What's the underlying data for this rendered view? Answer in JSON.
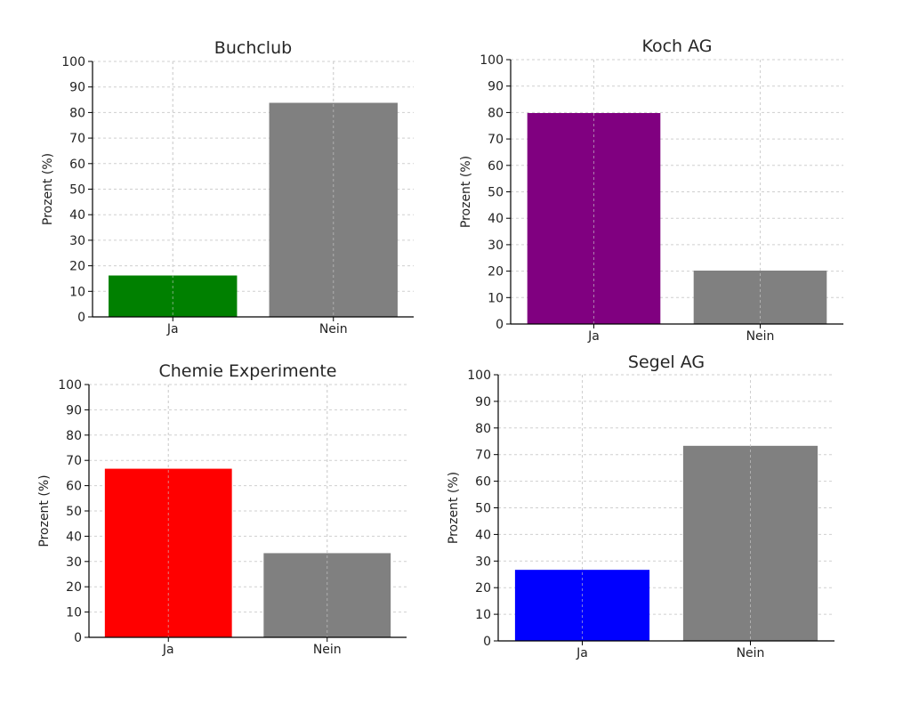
{
  "chart_data": [
    {
      "type": "bar",
      "title": "Buchclub",
      "categories": [
        "Ja",
        "Nein"
      ],
      "values": [
        16.2,
        83.8
      ],
      "colors": [
        "#008000",
        "#808080"
      ],
      "xlabel": "",
      "ylabel": "Prozent (%)",
      "ylim": [
        0,
        100
      ],
      "yticks": [
        0,
        10,
        20,
        30,
        40,
        50,
        60,
        70,
        80,
        90,
        100
      ],
      "grid": true
    },
    {
      "type": "bar",
      "title": "Koch AG",
      "categories": [
        "Ja",
        "Nein"
      ],
      "values": [
        79.8,
        20.2
      ],
      "colors": [
        "#800080",
        "#808080"
      ],
      "xlabel": "",
      "ylabel": "Prozent (%)",
      "ylim": [
        0,
        100
      ],
      "yticks": [
        0,
        10,
        20,
        30,
        40,
        50,
        60,
        70,
        80,
        90,
        100
      ],
      "grid": true
    },
    {
      "type": "bar",
      "title": "Chemie Experimente",
      "categories": [
        "Ja",
        "Nein"
      ],
      "values": [
        66.7,
        33.3
      ],
      "colors": [
        "#ff0000",
        "#808080"
      ],
      "xlabel": "",
      "ylabel": "Prozent (%)",
      "ylim": [
        0,
        100
      ],
      "yticks": [
        0,
        10,
        20,
        30,
        40,
        50,
        60,
        70,
        80,
        90,
        100
      ],
      "grid": true
    },
    {
      "type": "bar",
      "title": "Segel AG",
      "categories": [
        "Ja",
        "Nein"
      ],
      "values": [
        26.7,
        73.3
      ],
      "colors": [
        "#0000ff",
        "#808080"
      ],
      "xlabel": "",
      "ylabel": "Prozent (%)",
      "ylim": [
        0,
        100
      ],
      "yticks": [
        0,
        10,
        20,
        30,
        40,
        50,
        60,
        70,
        80,
        90,
        100
      ],
      "grid": true
    }
  ]
}
